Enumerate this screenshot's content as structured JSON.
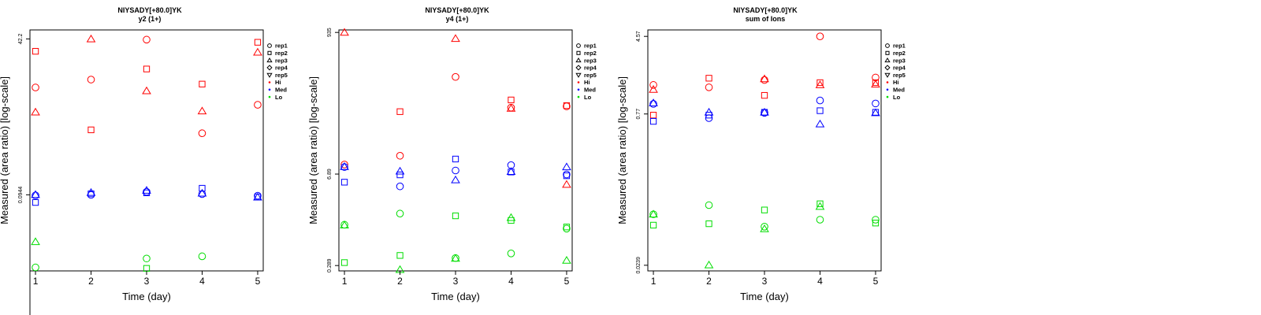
{
  "colors": {
    "Hi": "#ff0000",
    "Med": "#0000ff",
    "Lo": "#00dd00"
  },
  "legend": [
    {
      "label": "rep1",
      "shape": "circle"
    },
    {
      "label": "rep2",
      "shape": "square"
    },
    {
      "label": "rep3",
      "shape": "triangle-up"
    },
    {
      "label": "rep4",
      "shape": "diamond"
    },
    {
      "label": "rep5",
      "shape": "triangle-down"
    },
    {
      "label": "Hi",
      "shape": "dot",
      "color": "Hi"
    },
    {
      "label": "Med",
      "shape": "dot",
      "color": "Med"
    },
    {
      "label": "Lo",
      "shape": "dot",
      "color": "Lo"
    }
  ],
  "chart_data": [
    {
      "type": "scatter",
      "title": "NIYSADY[+80.0]YK",
      "subtitle": "y2 (1+)",
      "xlabel": "Time (day)",
      "ylabel": "Measured (area ratio) [log-scale]",
      "log_y": true,
      "xlim": [
        0.9,
        5.1
      ],
      "ylim": [
        0.0048,
        60
      ],
      "xticks": [
        1,
        2,
        3,
        4,
        5
      ],
      "yticks": [
        0.0944,
        42.2
      ],
      "ytick_labels": [
        "0.0944",
        "42.2"
      ],
      "grid": false,
      "legend_position": "right",
      "points": [
        {
          "x": 1,
          "y": 6.3,
          "rep": "rep1",
          "level": "Hi"
        },
        {
          "x": 1,
          "y": 26,
          "rep": "rep2",
          "level": "Hi"
        },
        {
          "x": 1,
          "y": 2.4,
          "rep": "rep3",
          "level": "Hi"
        },
        {
          "x": 1,
          "y": 0.092,
          "rep": "rep1",
          "level": "Med"
        },
        {
          "x": 1,
          "y": 0.07,
          "rep": "rep2",
          "level": "Med"
        },
        {
          "x": 1,
          "y": 0.095,
          "rep": "rep3",
          "level": "Med"
        },
        {
          "x": 1,
          "y": 0.0055,
          "rep": "rep1",
          "level": "Lo"
        },
        {
          "x": 1,
          "y": 0.015,
          "rep": "rep3",
          "level": "Lo"
        },
        {
          "x": 2,
          "y": 8.6,
          "rep": "rep1",
          "level": "Hi"
        },
        {
          "x": 2,
          "y": 1.2,
          "rep": "rep2",
          "level": "Hi"
        },
        {
          "x": 2,
          "y": 42,
          "rep": "rep3",
          "level": "Hi"
        },
        {
          "x": 2,
          "y": 0.094,
          "rep": "rep1",
          "level": "Med"
        },
        {
          "x": 2,
          "y": 0.098,
          "rep": "rep2",
          "level": "Med"
        },
        {
          "x": 2,
          "y": 0.103,
          "rep": "rep3",
          "level": "Med"
        },
        {
          "x": 3,
          "y": 41,
          "rep": "rep1",
          "level": "Hi"
        },
        {
          "x": 3,
          "y": 13,
          "rep": "rep2",
          "level": "Hi"
        },
        {
          "x": 3,
          "y": 5.5,
          "rep": "rep3",
          "level": "Hi"
        },
        {
          "x": 3,
          "y": 0.106,
          "rep": "rep1",
          "level": "Med"
        },
        {
          "x": 3,
          "y": 0.102,
          "rep": "rep2",
          "level": "Med"
        },
        {
          "x": 3,
          "y": 0.112,
          "rep": "rep3",
          "level": "Med"
        },
        {
          "x": 3,
          "y": 0.0078,
          "rep": "rep1",
          "level": "Lo"
        },
        {
          "x": 3,
          "y": 0.0053,
          "rep": "rep2",
          "level": "Lo"
        },
        {
          "x": 4,
          "y": 1.05,
          "rep": "rep1",
          "level": "Hi"
        },
        {
          "x": 4,
          "y": 7.2,
          "rep": "rep2",
          "level": "Hi"
        },
        {
          "x": 4,
          "y": 2.5,
          "rep": "rep3",
          "level": "Hi"
        },
        {
          "x": 4,
          "y": 0.097,
          "rep": "rep1",
          "level": "Med"
        },
        {
          "x": 4,
          "y": 0.122,
          "rep": "rep2",
          "level": "Med"
        },
        {
          "x": 4,
          "y": 0.1,
          "rep": "rep3",
          "level": "Med"
        },
        {
          "x": 4,
          "y": 0.0085,
          "rep": "rep1",
          "level": "Lo"
        },
        {
          "x": 5,
          "y": 3.2,
          "rep": "rep1",
          "level": "Hi"
        },
        {
          "x": 5,
          "y": 37,
          "rep": "rep2",
          "level": "Hi"
        },
        {
          "x": 5,
          "y": 25,
          "rep": "rep3",
          "level": "Hi"
        },
        {
          "x": 5,
          "y": 0.091,
          "rep": "rep1",
          "level": "Med"
        },
        {
          "x": 5,
          "y": 0.087,
          "rep": "rep2",
          "level": "Med"
        },
        {
          "x": 5,
          "y": 0.086,
          "rep": "rep3",
          "level": "Med"
        }
      ]
    },
    {
      "type": "scatter",
      "title": "NIYSADY[+80.0]YK",
      "subtitle": "y4 (1+)",
      "xlabel": "Time (day)",
      "ylabel": "Measured (area ratio) [log-scale]",
      "log_y": true,
      "xlim": [
        0.9,
        5.1
      ],
      "ylim": [
        0.24,
        1020
      ],
      "xticks": [
        1,
        2,
        3,
        4,
        5
      ],
      "yticks": [
        0.289,
        6.89,
        935
      ],
      "ytick_labels": [
        "0.289",
        "6.89",
        "935"
      ],
      "grid": false,
      "legend_position": "right",
      "points": [
        {
          "x": 1,
          "y": 9.6,
          "rep": "rep1",
          "level": "Hi"
        },
        {
          "x": 1,
          "y": 935,
          "rep": "rep3",
          "level": "Hi"
        },
        {
          "x": 1,
          "y": 8.8,
          "rep": "rep1",
          "level": "Med"
        },
        {
          "x": 1,
          "y": 5.2,
          "rep": "rep2",
          "level": "Med"
        },
        {
          "x": 1,
          "y": 8.9,
          "rep": "rep3",
          "level": "Med"
        },
        {
          "x": 1,
          "y": 1.19,
          "rep": "rep1",
          "level": "Lo"
        },
        {
          "x": 1,
          "y": 0.32,
          "rep": "rep2",
          "level": "Lo"
        },
        {
          "x": 1,
          "y": 1.17,
          "rep": "rep3",
          "level": "Lo"
        },
        {
          "x": 2,
          "y": 13,
          "rep": "rep1",
          "level": "Hi"
        },
        {
          "x": 2,
          "y": 60,
          "rep": "rep2",
          "level": "Hi"
        },
        {
          "x": 2,
          "y": 4.5,
          "rep": "rep1",
          "level": "Med"
        },
        {
          "x": 2,
          "y": 6.7,
          "rep": "rep2",
          "level": "Med"
        },
        {
          "x": 2,
          "y": 7.6,
          "rep": "rep3",
          "level": "Med"
        },
        {
          "x": 2,
          "y": 1.75,
          "rep": "rep1",
          "level": "Lo"
        },
        {
          "x": 2,
          "y": 0.41,
          "rep": "rep2",
          "level": "Lo"
        },
        {
          "x": 2,
          "y": 0.25,
          "rep": "rep3",
          "level": "Lo"
        },
        {
          "x": 3,
          "y": 200,
          "rep": "rep1",
          "level": "Hi"
        },
        {
          "x": 3,
          "y": 755,
          "rep": "rep3",
          "level": "Hi"
        },
        {
          "x": 3,
          "y": 7.8,
          "rep": "rep1",
          "level": "Med"
        },
        {
          "x": 3,
          "y": 11.6,
          "rep": "rep2",
          "level": "Med"
        },
        {
          "x": 3,
          "y": 5.6,
          "rep": "rep3",
          "level": "Med"
        },
        {
          "x": 3,
          "y": 0.375,
          "rep": "rep1",
          "level": "Lo"
        },
        {
          "x": 3,
          "y": 1.62,
          "rep": "rep2",
          "level": "Lo"
        },
        {
          "x": 3,
          "y": 0.37,
          "rep": "rep3",
          "level": "Lo"
        },
        {
          "x": 4,
          "y": 69,
          "rep": "rep1",
          "level": "Hi"
        },
        {
          "x": 4,
          "y": 90,
          "rep": "rep2",
          "level": "Hi"
        },
        {
          "x": 4,
          "y": 67,
          "rep": "rep3",
          "level": "Hi"
        },
        {
          "x": 4,
          "y": 9.4,
          "rep": "rep1",
          "level": "Med"
        },
        {
          "x": 4,
          "y": 7.4,
          "rep": "rep2",
          "level": "Med"
        },
        {
          "x": 4,
          "y": 7.5,
          "rep": "rep3",
          "level": "Med"
        },
        {
          "x": 4,
          "y": 0.44,
          "rep": "rep1",
          "level": "Lo"
        },
        {
          "x": 4,
          "y": 1.38,
          "rep": "rep2",
          "level": "Lo"
        },
        {
          "x": 4,
          "y": 1.52,
          "rep": "rep3",
          "level": "Lo"
        },
        {
          "x": 5,
          "y": 72,
          "rep": "rep1",
          "level": "Hi"
        },
        {
          "x": 5,
          "y": 74,
          "rep": "rep2",
          "level": "Hi"
        },
        {
          "x": 5,
          "y": 4.8,
          "rep": "rep3",
          "level": "Hi"
        },
        {
          "x": 5,
          "y": 6.8,
          "rep": "rep1",
          "level": "Med"
        },
        {
          "x": 5,
          "y": 6.5,
          "rep": "rep2",
          "level": "Med"
        },
        {
          "x": 5,
          "y": 8.8,
          "rep": "rep3",
          "level": "Med"
        },
        {
          "x": 5,
          "y": 1.04,
          "rep": "rep1",
          "level": "Lo"
        },
        {
          "x": 5,
          "y": 1.1,
          "rep": "rep2",
          "level": "Lo"
        },
        {
          "x": 5,
          "y": 0.345,
          "rep": "rep3",
          "level": "Lo"
        }
      ]
    },
    {
      "type": "scatter",
      "title": "NIYSADY[+80.0]YK",
      "subtitle": "sum of Ions",
      "xlabel": "Time (day)",
      "ylabel": "Measured (area ratio) [log-scale]",
      "log_y": true,
      "xlim": [
        0.9,
        5.1
      ],
      "ylim": [
        0.021,
        5.3
      ],
      "xticks": [
        1,
        2,
        3,
        4,
        5
      ],
      "yticks": [
        0.0239,
        0.77,
        4.57
      ],
      "ytick_labels": [
        "0.0239",
        "0.77",
        "4.57"
      ],
      "grid": false,
      "legend_position": "right",
      "points": [
        {
          "x": 1,
          "y": 1.5,
          "rep": "rep1",
          "level": "Hi"
        },
        {
          "x": 1,
          "y": 0.75,
          "rep": "rep2",
          "level": "Hi"
        },
        {
          "x": 1,
          "y": 1.35,
          "rep": "rep3",
          "level": "Hi"
        },
        {
          "x": 1,
          "y": 0.97,
          "rep": "rep1",
          "level": "Med"
        },
        {
          "x": 1,
          "y": 0.65,
          "rep": "rep2",
          "level": "Med"
        },
        {
          "x": 1,
          "y": 0.99,
          "rep": "rep3",
          "level": "Med"
        },
        {
          "x": 1,
          "y": 0.077,
          "rep": "rep1",
          "level": "Lo"
        },
        {
          "x": 1,
          "y": 0.06,
          "rep": "rep2",
          "level": "Lo"
        },
        {
          "x": 1,
          "y": 0.077,
          "rep": "rep3",
          "level": "Lo"
        },
        {
          "x": 2,
          "y": 1.42,
          "rep": "rep1",
          "level": "Hi"
        },
        {
          "x": 2,
          "y": 1.75,
          "rep": "rep2",
          "level": "Hi"
        },
        {
          "x": 2,
          "y": 0.7,
          "rep": "rep1",
          "level": "Med"
        },
        {
          "x": 2,
          "y": 0.75,
          "rep": "rep2",
          "level": "Med"
        },
        {
          "x": 2,
          "y": 0.8,
          "rep": "rep3",
          "level": "Med"
        },
        {
          "x": 2,
          "y": 0.095,
          "rep": "rep1",
          "level": "Lo"
        },
        {
          "x": 2,
          "y": 0.062,
          "rep": "rep2",
          "level": "Lo"
        },
        {
          "x": 2,
          "y": 0.024,
          "rep": "rep3",
          "level": "Lo"
        },
        {
          "x": 3,
          "y": 1.68,
          "rep": "rep1",
          "level": "Hi"
        },
        {
          "x": 3,
          "y": 1.18,
          "rep": "rep2",
          "level": "Hi"
        },
        {
          "x": 3,
          "y": 1.72,
          "rep": "rep3",
          "level": "Hi"
        },
        {
          "x": 3,
          "y": 0.79,
          "rep": "rep1",
          "level": "Med"
        },
        {
          "x": 3,
          "y": 0.8,
          "rep": "rep2",
          "level": "Med"
        },
        {
          "x": 3,
          "y": 0.8,
          "rep": "rep3",
          "level": "Med"
        },
        {
          "x": 3,
          "y": 0.058,
          "rep": "rep1",
          "level": "Lo"
        },
        {
          "x": 3,
          "y": 0.085,
          "rep": "rep2",
          "level": "Lo"
        },
        {
          "x": 3,
          "y": 0.055,
          "rep": "rep3",
          "level": "Lo"
        },
        {
          "x": 4,
          "y": 4.57,
          "rep": "rep1",
          "level": "Hi"
        },
        {
          "x": 4,
          "y": 1.58,
          "rep": "rep2",
          "level": "Hi"
        },
        {
          "x": 4,
          "y": 1.5,
          "rep": "rep3",
          "level": "Hi"
        },
        {
          "x": 4,
          "y": 1.05,
          "rep": "rep1",
          "level": "Med"
        },
        {
          "x": 4,
          "y": 0.83,
          "rep": "rep2",
          "level": "Med"
        },
        {
          "x": 4,
          "y": 0.61,
          "rep": "rep3",
          "level": "Med"
        },
        {
          "x": 4,
          "y": 0.068,
          "rep": "rep1",
          "level": "Lo"
        },
        {
          "x": 4,
          "y": 0.098,
          "rep": "rep2",
          "level": "Lo"
        },
        {
          "x": 4,
          "y": 0.092,
          "rep": "rep3",
          "level": "Lo"
        },
        {
          "x": 5,
          "y": 1.78,
          "rep": "rep1",
          "level": "Hi"
        },
        {
          "x": 5,
          "y": 1.58,
          "rep": "rep2",
          "level": "Hi"
        },
        {
          "x": 5,
          "y": 1.52,
          "rep": "rep3",
          "level": "Hi"
        },
        {
          "x": 5,
          "y": 0.98,
          "rep": "rep1",
          "level": "Med"
        },
        {
          "x": 5,
          "y": 0.8,
          "rep": "rep2",
          "level": "Med"
        },
        {
          "x": 5,
          "y": 0.79,
          "rep": "rep3",
          "level": "Med"
        },
        {
          "x": 5,
          "y": 0.068,
          "rep": "rep1",
          "level": "Lo"
        },
        {
          "x": 5,
          "y": 0.063,
          "rep": "rep2",
          "level": "Lo"
        }
      ]
    }
  ]
}
